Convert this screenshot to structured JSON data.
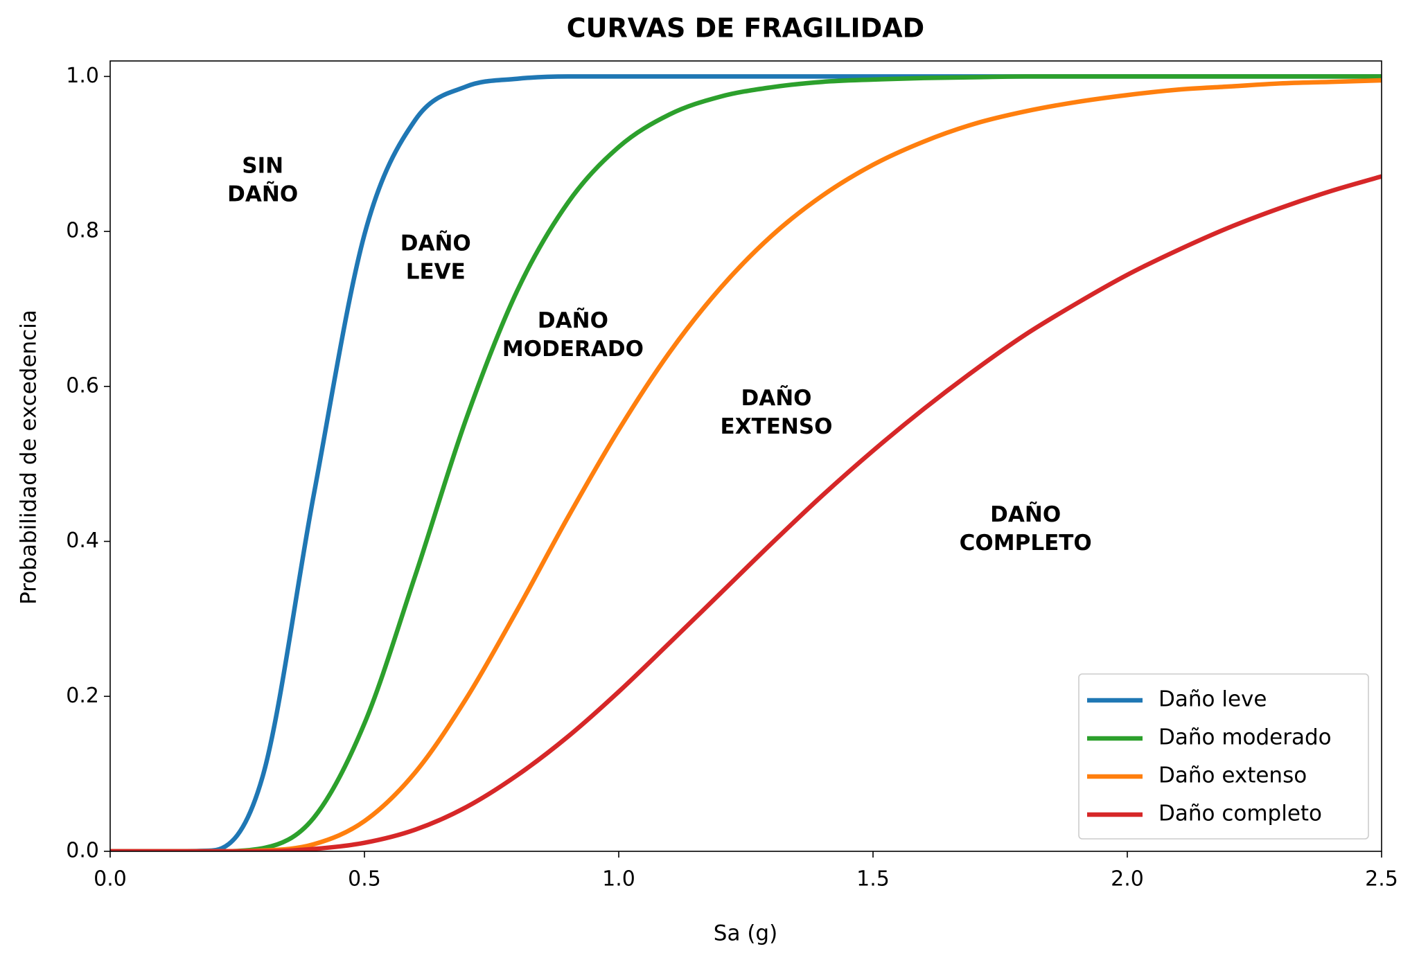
{
  "chart_data": {
    "type": "line",
    "title": "CURVAS DE FRAGILIDAD",
    "x_label": "Sa (g)",
    "y_label": "Probabilidad de excedencia",
    "x": [
      0,
      0.1,
      0.2,
      0.3,
      0.4,
      0.5,
      0.6,
      0.7,
      0.8,
      0.9,
      1.0,
      1.1,
      1.2,
      1.3,
      1.4,
      1.5,
      1.6,
      1.7,
      1.8,
      1.9,
      2.0,
      2.1,
      2.2,
      2.3,
      2.4,
      2.5
    ],
    "series": [
      {
        "name": "Daño leve",
        "color": "#1f77b4",
        "values": [
          0,
          0,
          0.001,
          0.097,
          0.459,
          0.796,
          0.944,
          0.987,
          0.997,
          1,
          1,
          1,
          1,
          1,
          1,
          1,
          1,
          1,
          1,
          1,
          1,
          1,
          1,
          1,
          1,
          1
        ]
      },
      {
        "name": "Daño moderado",
        "color": "#2ca02c",
        "values": [
          0,
          0,
          0,
          0.004,
          0.043,
          0.165,
          0.356,
          0.558,
          0.723,
          0.837,
          0.909,
          0.951,
          0.974,
          0.986,
          0.993,
          0.996,
          0.998,
          0.999,
          1,
          1,
          1,
          1,
          1,
          1,
          1,
          1
        ]
      },
      {
        "name": "Daño extenso",
        "color": "#ff7f0e",
        "values": [
          0,
          0,
          0,
          0.001,
          0.009,
          0.039,
          0.102,
          0.197,
          0.311,
          0.431,
          0.544,
          0.644,
          0.727,
          0.794,
          0.846,
          0.886,
          0.916,
          0.939,
          0.955,
          0.967,
          0.976,
          0.983,
          0.987,
          0.991,
          0.993,
          0.995
        ]
      },
      {
        "name": "Daño completo",
        "color": "#d62728",
        "values": [
          0,
          0,
          0,
          0,
          0.003,
          0.011,
          0.028,
          0.057,
          0.098,
          0.148,
          0.206,
          0.269,
          0.333,
          0.397,
          0.459,
          0.517,
          0.571,
          0.621,
          0.667,
          0.707,
          0.744,
          0.776,
          0.805,
          0.83,
          0.852,
          0.871
        ]
      }
    ],
    "annotations": [
      [
        "SIN",
        "DAÑO"
      ],
      [
        "DAÑO",
        "LEVE"
      ],
      [
        "DAÑO",
        "MODERADO"
      ],
      [
        "DAÑO",
        "EXTENSO"
      ],
      [
        "DAÑO",
        "COMPLETO"
      ]
    ],
    "xlim": [
      0,
      2.5
    ],
    "ylim": [
      0,
      1.02
    ],
    "xticks": [
      {
        "value": 0,
        "label": "0.0"
      },
      0.5,
      {
        "value": 1,
        "label": "1.0"
      },
      1.5,
      {
        "value": 2,
        "label": "2.0"
      },
      2.5
    ],
    "yticks": [
      {
        "value": 0,
        "label": "0.0"
      },
      0.2,
      0.4,
      0.6,
      0.8,
      {
        "value": 1,
        "label": "1.0"
      }
    ],
    "grid": false,
    "legend": "lower right"
  }
}
